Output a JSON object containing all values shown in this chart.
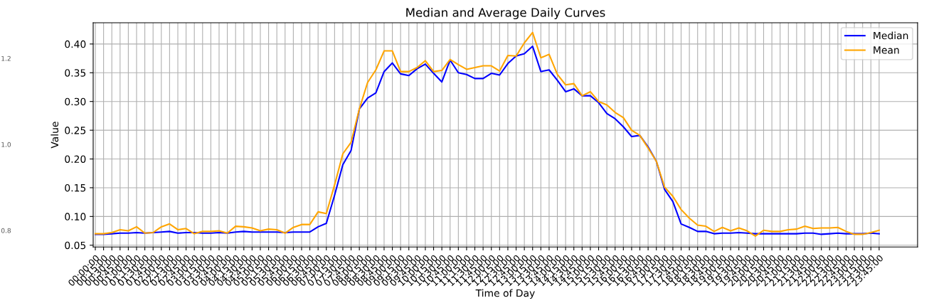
{
  "chart_data": [
    {
      "type": "line",
      "title": "Median and Average Daily Curves",
      "xlabel": "Time of Day",
      "ylabel": "Value",
      "categories": [
        "00:00:00",
        "00:15:00",
        "00:30:00",
        "00:45:00",
        "01:00:00",
        "01:15:00",
        "01:30:00",
        "01:45:00",
        "02:00:00",
        "02:15:00",
        "02:30:00",
        "02:45:00",
        "03:00:00",
        "03:15:00",
        "03:30:00",
        "03:45:00",
        "04:00:00",
        "04:15:00",
        "04:30:00",
        "04:45:00",
        "05:00:00",
        "05:15:00",
        "05:30:00",
        "05:45:00",
        "06:00:00",
        "06:15:00",
        "06:30:00",
        "06:45:00",
        "07:00:00",
        "07:15:00",
        "07:30:00",
        "07:45:00",
        "08:00:00",
        "08:15:00",
        "08:30:00",
        "08:45:00",
        "09:00:00",
        "09:15:00",
        "09:30:00",
        "09:45:00",
        "10:00:00",
        "10:15:00",
        "10:30:00",
        "10:45:00",
        "11:00:00",
        "11:15:00",
        "11:30:00",
        "11:45:00",
        "12:00:00",
        "12:15:00",
        "12:30:00",
        "12:45:00",
        "13:00:00",
        "13:15:00",
        "13:30:00",
        "13:45:00",
        "14:00:00",
        "14:15:00",
        "14:30:00",
        "14:45:00",
        "15:00:00",
        "15:15:00",
        "15:30:00",
        "15:45:00",
        "16:00:00",
        "16:15:00",
        "16:30:00",
        "16:45:00",
        "17:00:00",
        "17:15:00",
        "17:30:00",
        "17:45:00",
        "18:00:00",
        "18:15:00",
        "18:30:00",
        "18:45:00",
        "19:00:00",
        "19:15:00",
        "19:30:00",
        "19:45:00",
        "20:00:00",
        "20:15:00",
        "20:30:00",
        "20:45:00",
        "21:00:00",
        "21:15:00",
        "21:30:00",
        "21:45:00",
        "22:00:00",
        "22:15:00",
        "22:30:00",
        "22:45:00",
        "23:00:00",
        "23:15:00",
        "23:30:00",
        "23:45:00"
      ],
      "series": [
        {
          "name": "Median",
          "color": "#0000ff",
          "values": [
            0.069,
            0.069,
            0.07,
            0.071,
            0.071,
            0.072,
            0.071,
            0.072,
            0.073,
            0.074,
            0.071,
            0.072,
            0.072,
            0.071,
            0.071,
            0.072,
            0.071,
            0.073,
            0.074,
            0.073,
            0.073,
            0.073,
            0.073,
            0.072,
            0.073,
            0.073,
            0.073,
            0.082,
            0.088,
            0.137,
            0.19,
            0.215,
            0.287,
            0.306,
            0.315,
            0.352,
            0.367,
            0.348,
            0.345,
            0.357,
            0.365,
            0.349,
            0.334,
            0.372,
            0.35,
            0.347,
            0.34,
            0.34,
            0.349,
            0.346,
            0.366,
            0.379,
            0.383,
            0.396,
            0.352,
            0.355,
            0.337,
            0.317,
            0.322,
            0.31,
            0.31,
            0.298,
            0.279,
            0.27,
            0.256,
            0.239,
            0.241,
            0.221,
            0.196,
            0.147,
            0.126,
            0.087,
            0.081,
            0.074,
            0.074,
            0.07,
            0.071,
            0.071,
            0.072,
            0.071,
            0.07,
            0.07,
            0.07,
            0.07,
            0.07,
            0.07,
            0.071,
            0.071,
            0.069,
            0.07,
            0.071,
            0.07,
            0.07,
            0.07,
            0.071,
            0.07
          ]
        },
        {
          "name": "Mean",
          "color": "#ffa500",
          "values": [
            0.07,
            0.07,
            0.072,
            0.077,
            0.075,
            0.082,
            0.071,
            0.072,
            0.082,
            0.087,
            0.077,
            0.079,
            0.07,
            0.074,
            0.074,
            0.075,
            0.071,
            0.083,
            0.082,
            0.08,
            0.075,
            0.078,
            0.077,
            0.071,
            0.081,
            0.086,
            0.086,
            0.108,
            0.105,
            0.155,
            0.209,
            0.229,
            0.287,
            0.333,
            0.355,
            0.388,
            0.388,
            0.352,
            0.352,
            0.359,
            0.371,
            0.352,
            0.354,
            0.373,
            0.364,
            0.356,
            0.359,
            0.362,
            0.362,
            0.353,
            0.38,
            0.379,
            0.402,
            0.42,
            0.376,
            0.382,
            0.347,
            0.329,
            0.331,
            0.31,
            0.317,
            0.3,
            0.294,
            0.281,
            0.272,
            0.25,
            0.241,
            0.219,
            0.196,
            0.151,
            0.135,
            0.112,
            0.097,
            0.085,
            0.083,
            0.074,
            0.081,
            0.075,
            0.08,
            0.075,
            0.066,
            0.076,
            0.074,
            0.074,
            0.077,
            0.078,
            0.083,
            0.079,
            0.08,
            0.08,
            0.081,
            0.074,
            0.069,
            0.069,
            0.072,
            0.076
          ]
        }
      ],
      "ylim": [
        0.047,
        0.437
      ],
      "yticks": [
        {
          "value": 0.05,
          "label": "0.05"
        },
        {
          "value": 0.1,
          "label": "0.10"
        },
        {
          "value": 0.15,
          "label": "0.15"
        },
        {
          "value": 0.2,
          "label": "0.20"
        },
        {
          "value": 0.25,
          "label": "0.25"
        },
        {
          "value": 0.3,
          "label": "0.30"
        },
        {
          "value": 0.35,
          "label": "0.35"
        },
        {
          "value": 0.4,
          "label": "0.40"
        }
      ],
      "grid": true,
      "legend": "top right",
      "annotations": [
        "1.2",
        "1.0",
        "0.8"
      ]
    }
  ]
}
